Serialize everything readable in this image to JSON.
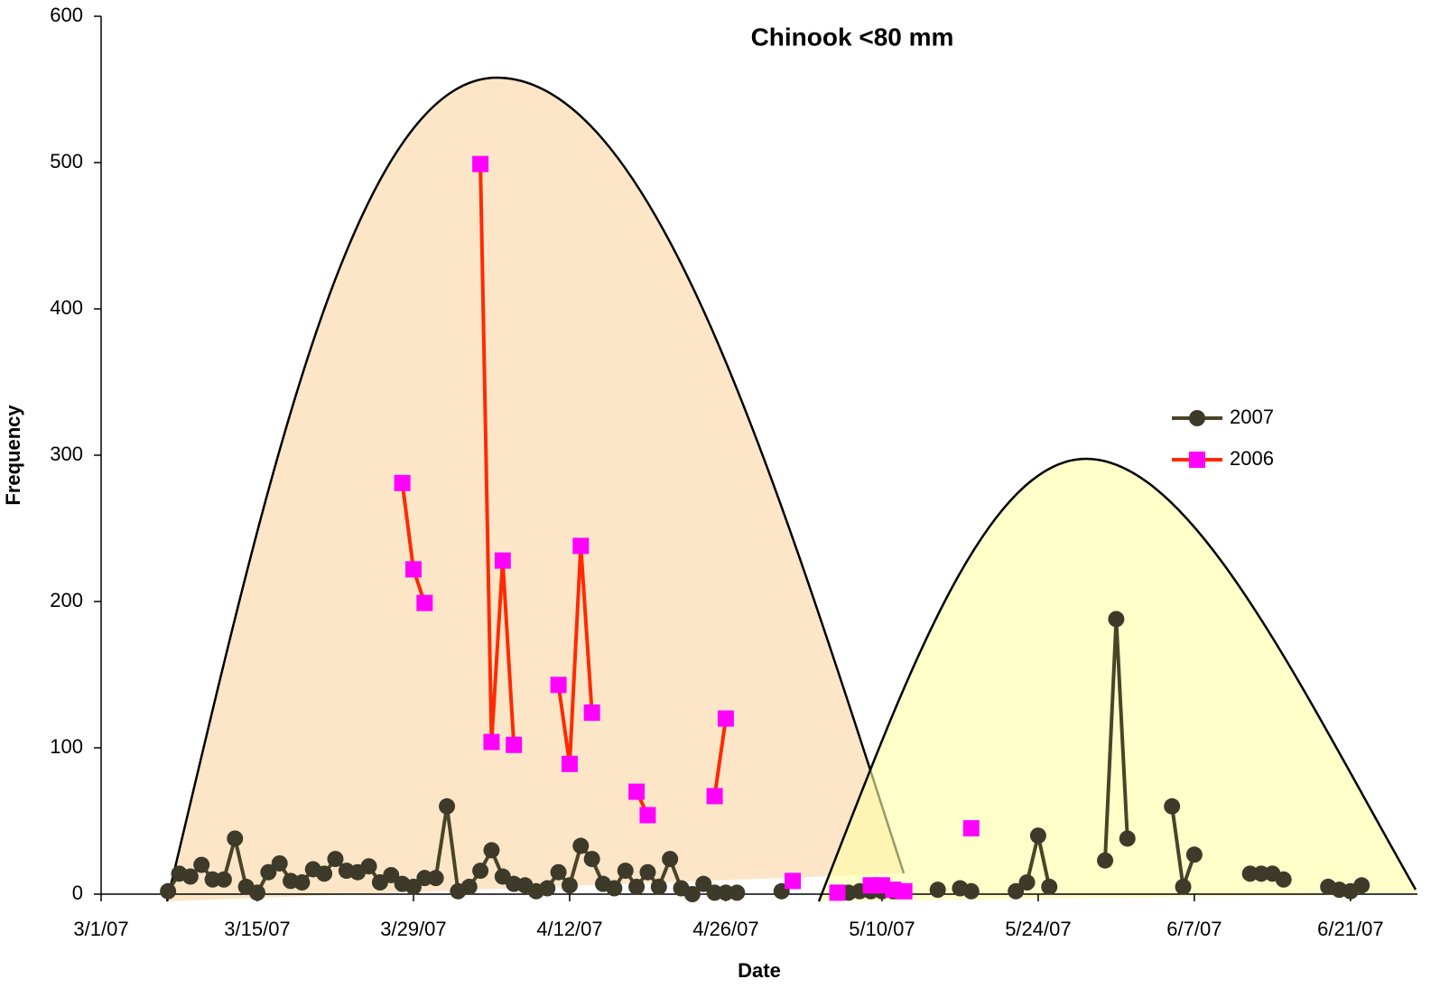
{
  "chart_data": {
    "type": "line",
    "title": "Chinook <80 mm",
    "x_label": "Date",
    "y_label": "Frequency",
    "xlim": [
      "2007-03-01",
      "2007-06-27"
    ],
    "xticks": [
      {
        "value": "2007-03-01",
        "label": "3/1/07"
      },
      {
        "value": "2007-03-15",
        "label": "3/15/07"
      },
      {
        "value": "2007-03-29",
        "label": "3/29/07"
      },
      {
        "value": "2007-04-12",
        "label": "4/12/07"
      },
      {
        "value": "2007-04-26",
        "label": "4/26/07"
      },
      {
        "value": "2007-05-10",
        "label": "5/10/07"
      },
      {
        "value": "2007-05-24",
        "label": "5/24/07"
      },
      {
        "value": "2007-06-07",
        "label": "6/7/07"
      },
      {
        "value": "2007-06-21",
        "label": "6/21/07"
      }
    ],
    "ylim": [
      0,
      600
    ],
    "yticks": [
      0,
      100,
      200,
      300,
      400,
      500,
      600
    ],
    "grid": false,
    "legend": "right",
    "series": [
      {
        "name": "2007",
        "line_color": "#4a4428",
        "marker_color": "#3d3a2a",
        "marker": "circle",
        "x": [
          "2007-03-07",
          "2007-03-08",
          "2007-03-09",
          "2007-03-10",
          "2007-03-11",
          "2007-03-12",
          "2007-03-13",
          "2007-03-14",
          "2007-03-15",
          "2007-03-16",
          "2007-03-17",
          "2007-03-18",
          "2007-03-19",
          "2007-03-20",
          "2007-03-21",
          "2007-03-22",
          "2007-03-23",
          "2007-03-24",
          "2007-03-25",
          "2007-03-26",
          "2007-03-27",
          "2007-03-28",
          "2007-03-29",
          "2007-03-30",
          "2007-03-31",
          "2007-04-01",
          "2007-04-02",
          "2007-04-03",
          "2007-04-04",
          "2007-04-05",
          "2007-04-06",
          "2007-04-07",
          "2007-04-08",
          "2007-04-09",
          "2007-04-10",
          "2007-04-11",
          "2007-04-12",
          "2007-04-13",
          "2007-04-14",
          "2007-04-15",
          "2007-04-16",
          "2007-04-17",
          "2007-04-18",
          "2007-04-19",
          "2007-04-20",
          "2007-04-21",
          "2007-04-22",
          "2007-04-23",
          "2007-04-24",
          "2007-04-25",
          "2007-04-26",
          "2007-04-27",
          "2007-04-28",
          "2007-05-01",
          "2007-05-02",
          "2007-05-07",
          "2007-05-08",
          "2007-05-09",
          "2007-05-10",
          "2007-05-11",
          "2007-05-12",
          "2007-05-15",
          "2007-05-16",
          "2007-05-17",
          "2007-05-18",
          "2007-05-19",
          "2007-05-22",
          "2007-05-23",
          "2007-05-24",
          "2007-05-25",
          "2007-05-26",
          "2007-05-30",
          "2007-05-31",
          "2007-06-01",
          "2007-06-02",
          "2007-06-05",
          "2007-06-06",
          "2007-06-07",
          "2007-06-08",
          "2007-06-12",
          "2007-06-13",
          "2007-06-14",
          "2007-06-15",
          "2007-06-16",
          "2007-06-19",
          "2007-06-20",
          "2007-06-21",
          "2007-06-22"
        ],
        "values": [
          2,
          14,
          12,
          20,
          10,
          10,
          38,
          5,
          1,
          15,
          21,
          9,
          8,
          17,
          14,
          24,
          16,
          15,
          19,
          8,
          13,
          7,
          5,
          11,
          11,
          60,
          2,
          5,
          16,
          30,
          12,
          7,
          6,
          2,
          4,
          15,
          6,
          33,
          24,
          7,
          4,
          16,
          5,
          15,
          5,
          24,
          4,
          0,
          7,
          1,
          1,
          1,
          null,
          2,
          null,
          1,
          2,
          2,
          2,
          2,
          null,
          3,
          null,
          4,
          2,
          null,
          2,
          8,
          40,
          5,
          null,
          23,
          188,
          38,
          null,
          60,
          5,
          27,
          null,
          14,
          14,
          14,
          10,
          null,
          5,
          3,
          2,
          6
        ]
      },
      {
        "name": "2006",
        "line_color": "#ff2a00",
        "marker_color": "#ff00ff",
        "marker": "square",
        "x": [
          "2007-03-28",
          "2007-03-29",
          "2007-03-30",
          "2007-03-31",
          "2007-04-04",
          "2007-04-05",
          "2007-04-06",
          "2007-04-07",
          "2007-04-08",
          "2007-04-11",
          "2007-04-12",
          "2007-04-13",
          "2007-04-14",
          "2007-04-15",
          "2007-04-18",
          "2007-04-19",
          "2007-04-20",
          "2007-04-25",
          "2007-04-26",
          "2007-04-27",
          "2007-05-02",
          "2007-05-03",
          "2007-05-06",
          "2007-05-07",
          "2007-05-09",
          "2007-05-10",
          "2007-05-11",
          "2007-05-12",
          "2007-05-13",
          "2007-05-18"
        ],
        "values": [
          281,
          222,
          199,
          null,
          499,
          104,
          228,
          102,
          null,
          143,
          89,
          238,
          124,
          null,
          70,
          54,
          null,
          67,
          120,
          null,
          9,
          null,
          1,
          null,
          6,
          6,
          3,
          2,
          null,
          45
        ]
      }
    ]
  }
}
